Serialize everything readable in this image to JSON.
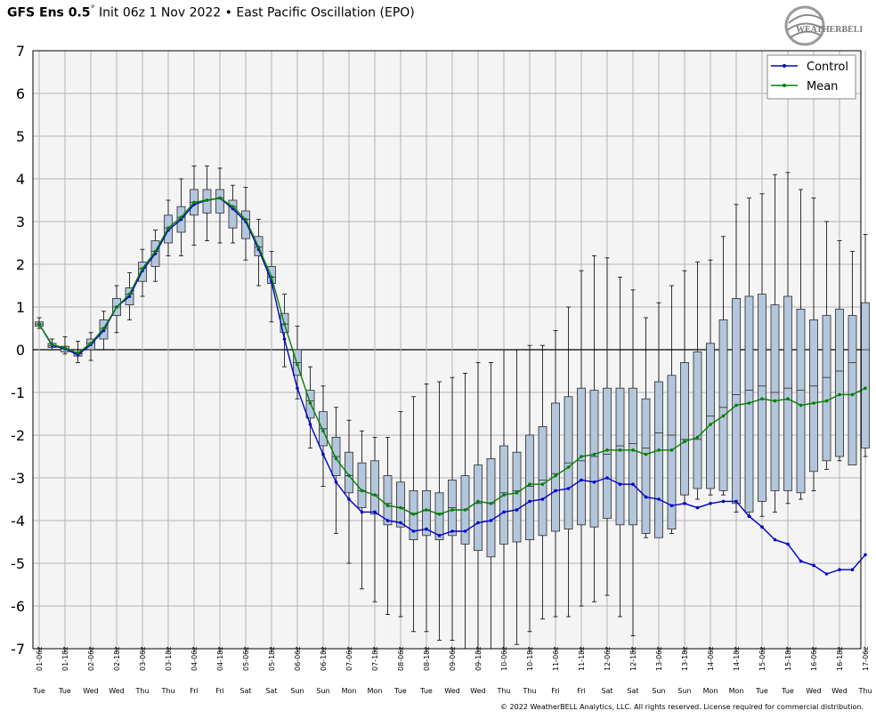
{
  "header": {
    "title_bold": "GFS Ens 0.5",
    "title_degree": "°",
    "title_rest": " Init 06z 1 Nov 2022 • East Pacific Oscillation (EPO)"
  },
  "logo": {
    "text": "WEATHERBELL"
  },
  "footer": {
    "copyright": "© 2022 WeatherBELL Analytics, LLC. All rights reserved. License required for commercial distribution."
  },
  "colors": {
    "control": "#0000c8",
    "mean": "#008000",
    "box_fill": "#b4c6dc",
    "plot_bg": "#f4f4f4",
    "grid": "#b4b4b4"
  },
  "chart_data": {
    "type": "line",
    "ylim": [
      -7,
      7
    ],
    "yticks": [
      7,
      6,
      5,
      4,
      3,
      2,
      1,
      0,
      -1,
      -2,
      -3,
      -4,
      -5,
      -6,
      -7
    ],
    "grid": true,
    "legend_position": "top-right",
    "x": [
      "01-06z",
      "01-12z",
      "01-18z",
      "02-00z",
      "02-06z",
      "02-12z",
      "02-18z",
      "03-00z",
      "03-06z",
      "03-12z",
      "03-18z",
      "04-00z",
      "04-06z",
      "04-12z",
      "04-18z",
      "05-00z",
      "05-06z",
      "05-12z",
      "05-18z",
      "06-00z",
      "06-06z",
      "06-12z",
      "06-18z",
      "07-00z",
      "07-06z",
      "07-12z",
      "07-18z",
      "08-00z",
      "08-06z",
      "08-12z",
      "08-18z",
      "09-00z",
      "09-06z",
      "09-12z",
      "09-18z",
      "10-00z",
      "10-06z",
      "10-12z",
      "10-18z",
      "11-00z",
      "11-06z",
      "11-12z",
      "11-18z",
      "12-00z",
      "12-06z",
      "12-12z",
      "12-18z",
      "13-00z",
      "13-06z",
      "13-12z",
      "13-18z",
      "14-00z",
      "14-06z",
      "14-12z",
      "14-18z",
      "15-00z",
      "15-06z",
      "15-12z",
      "15-18z",
      "16-00z",
      "16-06z",
      "16-12z",
      "16-18z",
      "17-00z",
      "17-06z"
    ],
    "tick_date_labels": [
      "01-06z",
      "01-18z",
      "02-06z",
      "02-18z",
      "03-06z",
      "03-18z",
      "04-06z",
      "04-18z",
      "05-06z",
      "05-18z",
      "06-06z",
      "06-18z",
      "07-06z",
      "07-18z",
      "08-06z",
      "08-18z",
      "09-06z",
      "09-18z",
      "10-06z",
      "10-18z",
      "11-06z",
      "11-18z",
      "12-06z",
      "12-18z",
      "13-06z",
      "13-18z",
      "14-06z",
      "14-18z",
      "15-06z",
      "15-18z",
      "16-06z",
      "16-18z",
      "17-06z"
    ],
    "tick_day_labels": [
      "Tue",
      "Tue",
      "Wed",
      "Wed",
      "Thu",
      "Thu",
      "Fri",
      "Fri",
      "Sat",
      "Sat",
      "Sun",
      "Sun",
      "Mon",
      "Mon",
      "Tue",
      "Tue",
      "Wed",
      "Wed",
      "Thu",
      "Thu",
      "Fri",
      "Fri",
      "Sat",
      "Sat",
      "Sun",
      "Sun",
      "Mon",
      "Mon",
      "Tue",
      "Tue",
      "Wed",
      "Wed",
      "Thu"
    ],
    "series": [
      {
        "name": "Control",
        "values": [
          0.6,
          0.1,
          0.02,
          -0.12,
          0.12,
          0.45,
          1.0,
          1.25,
          1.85,
          2.25,
          2.8,
          3.05,
          3.4,
          3.5,
          3.55,
          3.3,
          3.0,
          2.35,
          1.6,
          0.25,
          -0.9,
          -1.75,
          -2.45,
          -3.1,
          -3.5,
          -3.8,
          -3.8,
          -4.0,
          -4.05,
          -4.25,
          -4.2,
          -4.35,
          -4.25,
          -4.25,
          -4.05,
          -4.0,
          -3.8,
          -3.75,
          -3.55,
          -3.5,
          -3.3,
          -3.25,
          -3.05,
          -3.1,
          -3.0,
          -3.15,
          -3.15,
          -3.45,
          -3.5,
          -3.65,
          -3.6,
          -3.7,
          -3.6,
          -3.55,
          -3.55,
          -3.9,
          -4.15,
          -4.45,
          -4.55,
          -4.95,
          -5.05,
          -5.25,
          -5.15,
          -5.15,
          -4.8
        ]
      },
      {
        "name": "Mean",
        "values": [
          0.6,
          0.12,
          0.04,
          -0.08,
          0.15,
          0.5,
          1.0,
          1.3,
          1.9,
          2.3,
          2.85,
          3.1,
          3.45,
          3.5,
          3.55,
          3.35,
          3.05,
          2.4,
          1.7,
          0.6,
          -0.35,
          -1.25,
          -1.9,
          -2.55,
          -2.95,
          -3.3,
          -3.4,
          -3.65,
          -3.7,
          -3.85,
          -3.75,
          -3.85,
          -3.75,
          -3.75,
          -3.55,
          -3.6,
          -3.4,
          -3.35,
          -3.15,
          -3.15,
          -2.95,
          -2.75,
          -2.5,
          -2.45,
          -2.35,
          -2.35,
          -2.35,
          -2.45,
          -2.35,
          -2.35,
          -2.15,
          -2.05,
          -1.75,
          -1.55,
          -1.3,
          -1.25,
          -1.15,
          -1.2,
          -1.15,
          -1.3,
          -1.25,
          -1.2,
          -1.05,
          -1.05,
          -0.9
        ]
      }
    ],
    "boxplot": {
      "whisker_low": [
        0.5,
        0.0,
        -0.1,
        -0.3,
        -0.25,
        0.0,
        0.4,
        0.7,
        1.25,
        1.6,
        2.2,
        2.2,
        2.45,
        2.55,
        2.5,
        2.5,
        2.1,
        1.5,
        0.65,
        -0.4,
        -1.15,
        -2.3,
        -3.2,
        -4.3,
        -5.0,
        -5.6,
        -5.9,
        -6.2,
        -6.25,
        -6.6,
        -6.6,
        -6.8,
        -6.8,
        -7.0,
        -7.0,
        -7.0,
        -7.0,
        -6.9,
        -6.6,
        -6.3,
        -6.25,
        -6.25,
        -6.0,
        -5.9,
        -5.75,
        -6.25,
        -6.7,
        -4.4,
        -4.3,
        -4.3,
        -3.6,
        -3.5,
        -3.4,
        -3.4,
        -3.8,
        -3.9,
        -3.9,
        -3.8,
        -3.6,
        -3.5,
        -3.3,
        -2.8,
        -2.6,
        -2.5,
        -2.5
      ],
      "q1": [
        0.55,
        0.05,
        -0.05,
        -0.15,
        0.0,
        0.25,
        0.8,
        1.05,
        1.6,
        1.95,
        2.5,
        2.75,
        3.15,
        3.2,
        3.2,
        2.85,
        2.6,
        2.2,
        1.55,
        0.4,
        -0.6,
        -1.6,
        -2.25,
        -2.95,
        -3.35,
        -3.7,
        -3.85,
        -4.1,
        -4.15,
        -4.45,
        -4.35,
        -4.45,
        -4.35,
        -4.55,
        -4.7,
        -4.85,
        -4.55,
        -4.5,
        -4.45,
        -4.35,
        -4.25,
        -4.2,
        -4.1,
        -4.15,
        -3.95,
        -4.1,
        -4.1,
        -4.3,
        -4.4,
        -4.2,
        -3.4,
        -3.25,
        -3.25,
        -3.3,
        -3.6,
        -3.8,
        -3.55,
        -3.3,
        -3.3,
        -3.35,
        -2.85,
        -2.6,
        -2.5,
        -2.7,
        -2.3
      ],
      "median": [
        0.6,
        0.1,
        0.02,
        -0.1,
        0.15,
        0.5,
        1.0,
        1.3,
        1.9,
        2.3,
        2.85,
        3.1,
        3.45,
        3.5,
        3.55,
        3.35,
        3.05,
        2.4,
        1.7,
        0.6,
        -0.3,
        -1.2,
        -1.85,
        -2.5,
        -2.95,
        -3.3,
        -3.4,
        -3.6,
        -3.7,
        -3.85,
        -3.75,
        -3.85,
        -3.7,
        -3.75,
        -3.6,
        -3.6,
        -3.35,
        -3.3,
        -3.2,
        -3.05,
        -2.9,
        -2.65,
        -2.6,
        -2.5,
        -2.45,
        -2.25,
        -2.2,
        -2.3,
        -1.95,
        -2.0,
        -2.1,
        -2.1,
        -1.55,
        -1.35,
        -1.05,
        -0.95,
        -0.85,
        -1.0,
        -0.9,
        -0.95,
        -0.85,
        -0.65,
        -0.5,
        -0.3,
        0.0
      ],
      "q3": [
        0.65,
        0.15,
        0.08,
        -0.05,
        0.25,
        0.7,
        1.2,
        1.45,
        2.05,
        2.55,
        3.15,
        3.35,
        3.75,
        3.75,
        3.75,
        3.5,
        3.25,
        2.65,
        1.95,
        0.85,
        0.0,
        -0.95,
        -1.45,
        -2.05,
        -2.4,
        -2.65,
        -2.6,
        -2.95,
        -3.1,
        -3.3,
        -3.3,
        -3.35,
        -3.05,
        -2.95,
        -2.7,
        -2.55,
        -2.25,
        -2.4,
        -2.0,
        -1.8,
        -1.25,
        -1.1,
        -0.9,
        -0.95,
        -0.9,
        -0.9,
        -0.9,
        -1.15,
        -0.75,
        -0.6,
        -0.3,
        -0.05,
        0.15,
        0.7,
        1.2,
        1.25,
        1.3,
        1.05,
        1.25,
        0.95,
        0.7,
        0.8,
        0.95,
        0.8,
        1.1
      ],
      "whisker_high": [
        0.75,
        0.25,
        0.3,
        0.2,
        0.4,
        0.9,
        1.5,
        1.8,
        2.35,
        2.8,
        3.5,
        4.0,
        4.3,
        4.3,
        4.25,
        3.85,
        3.8,
        3.05,
        2.3,
        1.3,
        0.55,
        -0.4,
        -0.85,
        -1.35,
        -1.65,
        -1.9,
        -2.05,
        -2.05,
        -1.45,
        -1.1,
        -0.8,
        -0.75,
        -0.65,
        -0.55,
        -0.3,
        -0.3,
        0.0,
        0.0,
        0.1,
        0.1,
        0.45,
        1.0,
        1.85,
        2.2,
        2.15,
        1.7,
        1.4,
        0.75,
        1.1,
        1.5,
        1.85,
        2.05,
        2.1,
        2.65,
        3.4,
        3.55,
        3.65,
        4.1,
        4.15,
        3.75,
        3.55,
        3.0,
        2.55,
        2.3,
        2.7
      ]
    }
  }
}
